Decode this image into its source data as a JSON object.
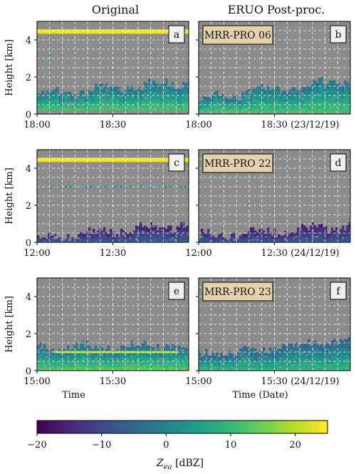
{
  "figure": {
    "columns": [
      "Original",
      "ERUO Post-proc."
    ],
    "colorbar": {
      "label": "Z_ea [dBZ]",
      "label_main": "Z",
      "label_sub": "ea",
      "label_unit": "[dBZ]",
      "min": -20,
      "max": 25,
      "ticks": [
        -20,
        -10,
        0,
        10,
        20
      ],
      "tick_labels": [
        "−20",
        "−10",
        "0",
        "10",
        "20"
      ],
      "colormap": "viridis"
    },
    "ylabel": "Height [km]",
    "xlabel_left": "Time",
    "xlabel_right": "Time (Date)",
    "background_color": "#8c8c8c"
  },
  "chart_data": [
    {
      "type": "heatmap",
      "panel": "a",
      "row": 0,
      "col": 0,
      "box_label": "",
      "ylim": [
        0,
        5
      ],
      "yticks": [
        "0",
        "2",
        "4"
      ],
      "xticks": [
        "18:00",
        "18:30"
      ],
      "date": "",
      "interference_line_km": 4.45,
      "echo": {
        "base": 0.2,
        "top_start": 1.0,
        "top_end": 1.7,
        "max_dbz": 12,
        "min_dbz": -3
      },
      "spurious_points": [
        [
          0.08,
          3.3
        ],
        [
          0.05,
          2.9
        ],
        [
          0.04,
          2.1
        ]
      ]
    },
    {
      "type": "heatmap",
      "panel": "b",
      "row": 0,
      "col": 1,
      "box_label": "MRR-PRO 06",
      "ylim": [
        0,
        5
      ],
      "yticks": [],
      "xticks": [
        "18:00",
        "18:30 (23/12/19)"
      ],
      "date": "23/12/19",
      "echo": {
        "base": 0.1,
        "top_start": 0.8,
        "top_end": 1.8,
        "max_dbz": 12,
        "min_dbz": -3
      }
    },
    {
      "type": "heatmap",
      "panel": "c",
      "row": 1,
      "col": 0,
      "box_label": "",
      "ylim": [
        0,
        5
      ],
      "yticks": [
        "0",
        "2",
        "4"
      ],
      "xticks": [
        "12:00",
        "12:30"
      ],
      "date": "",
      "interference_line_km": 4.45,
      "dashed_line_km": 3.0,
      "echo": {
        "base": 0.0,
        "top_start": 0.2,
        "top_end": 0.9,
        "max_dbz": -6,
        "min_dbz": -16
      }
    },
    {
      "type": "heatmap",
      "panel": "d",
      "row": 1,
      "col": 1,
      "box_label": "MRR-PRO 22",
      "ylim": [
        0,
        5
      ],
      "yticks": [],
      "xticks": [
        "12:00",
        "12:30 (24/12/19)"
      ],
      "date": "24/12/19",
      "echo": {
        "base": 0.0,
        "top_start": 0.3,
        "top_end": 0.8,
        "max_dbz": -7,
        "min_dbz": -16
      }
    },
    {
      "type": "heatmap",
      "panel": "e",
      "row": 2,
      "col": 0,
      "box_label": "",
      "ylim": [
        0,
        5
      ],
      "yticks": [
        "0",
        "2",
        "4"
      ],
      "xticks": [
        "15:00",
        "15:30"
      ],
      "date": "",
      "bright_line_km": 1.0,
      "echo": {
        "base": 0.0,
        "top_start": 1.2,
        "top_end": 1.3,
        "max_dbz": 14,
        "min_dbz": -4
      }
    },
    {
      "type": "heatmap",
      "panel": "f",
      "row": 2,
      "col": 1,
      "box_label": "MRR-PRO 23",
      "ylim": [
        0,
        5
      ],
      "yticks": [],
      "xticks": [
        "15:00",
        "15:30 (24/12/19)"
      ],
      "date": "24/12/19",
      "echo": {
        "base": 0.0,
        "top_start": 0.8,
        "top_end": 1.6,
        "max_dbz": 10,
        "min_dbz": -6
      }
    }
  ]
}
